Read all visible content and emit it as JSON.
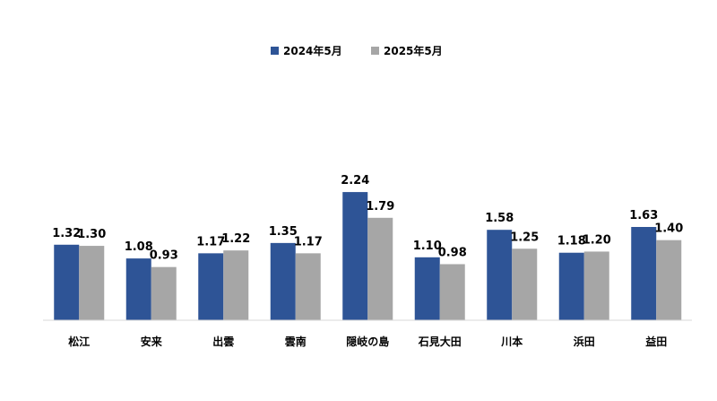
{
  "chart_data": {
    "type": "bar",
    "title": "",
    "xlabel": "",
    "ylabel": "",
    "ylim": [
      0,
      2.5
    ],
    "grid": false,
    "legend": "top-center",
    "categories": [
      "松江",
      "安来",
      "出雲",
      "雲南",
      "隠岐の島",
      "石見大田",
      "川本",
      "浜田",
      "益田"
    ],
    "series": [
      {
        "name": "2024年5月",
        "color": "#2e5496",
        "values": [
          1.32,
          1.08,
          1.17,
          1.35,
          2.24,
          1.1,
          1.58,
          1.18,
          1.63
        ],
        "labels": [
          "1.32",
          "1.08",
          "1.17",
          "1.35",
          "2.24",
          "1.10",
          "1.58",
          "1.18",
          "1.63"
        ]
      },
      {
        "name": "2025年5月",
        "color": "#a6a6a6",
        "values": [
          1.3,
          0.93,
          1.22,
          1.17,
          1.79,
          0.98,
          1.25,
          1.2,
          1.4
        ],
        "labels": [
          "1.30",
          "0.93",
          "1.22",
          "1.17",
          "1.79",
          "0.98",
          "1.25",
          "1.20",
          "1.40"
        ]
      }
    ]
  }
}
